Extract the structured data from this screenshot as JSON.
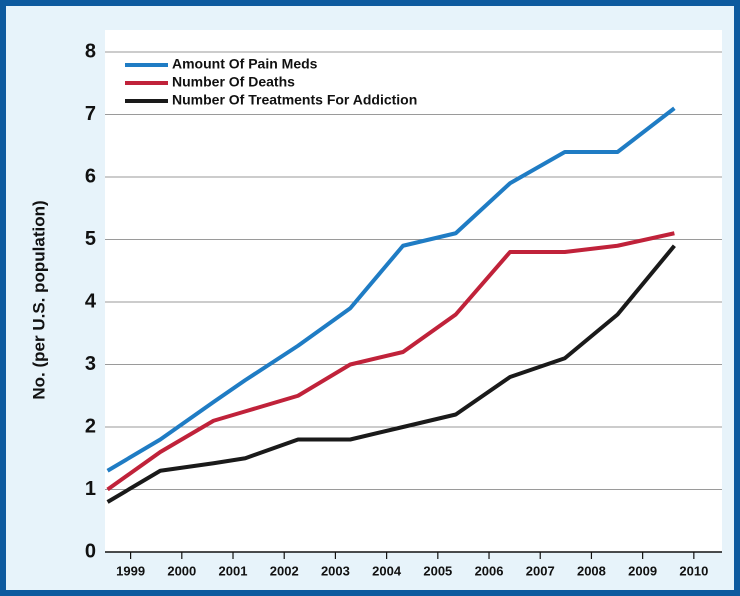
{
  "chart_data": {
    "type": "line",
    "y_label": "No. (per U.S. population)",
    "x": [
      1998.55,
      1999.58,
      2000.62,
      2001.24,
      2002.27,
      2003.29,
      2004.32,
      2005.35,
      2006.41,
      2007.48,
      2008.51,
      2009.62
    ],
    "series": [
      {
        "name": "Amount Of Pain Meds",
        "color": "#1f7cc4",
        "values": [
          1.3,
          1.8,
          2.4,
          2.75,
          3.3,
          3.9,
          4.9,
          5.1,
          5.9,
          6.4,
          6.4,
          7.1
        ]
      },
      {
        "name": "Number Of Deaths",
        "color": "#c0223a",
        "values": [
          1.0,
          1.6,
          2.1,
          2.25,
          2.5,
          3.0,
          3.2,
          3.8,
          4.8,
          4.8,
          4.9,
          5.1
        ]
      },
      {
        "name": "Number Of Treatments For Addiction",
        "color": "#1a1a1a",
        "values": [
          0.8,
          1.3,
          1.42,
          1.5,
          1.8,
          1.8,
          2.0,
          2.2,
          2.8,
          3.1,
          3.8,
          4.9
        ]
      }
    ],
    "xlim": [
      1998.5,
      2010.55
    ],
    "xticks": [
      1999,
      2000,
      2001,
      2002,
      2003,
      2004,
      2005,
      2006,
      2007,
      2008,
      2009,
      2010
    ],
    "ylim": [
      0,
      8
    ],
    "yticks": [
      0,
      1,
      2,
      3,
      4,
      5,
      6,
      7,
      8
    ],
    "grid": true,
    "legend": "upper-left"
  }
}
